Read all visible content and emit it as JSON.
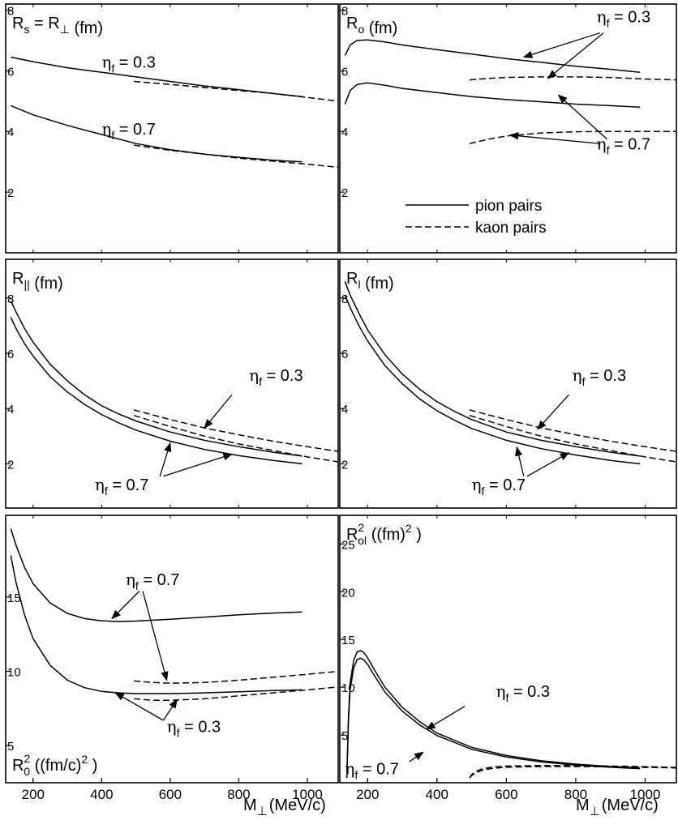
{
  "figure": {
    "xlabel_left": "M",
    "xlabel_left_sub": "⊥",
    "xlabel_left_unit": "(MeV/c)",
    "xlabel_right": "M",
    "xlabel_right_sub": "⊥",
    "xlabel_right_unit": "(MeV/c)",
    "legend": {
      "solid": "pion pairs",
      "dashed": "kaon pairs",
      "placement": "lower-left of top-right panel"
    }
  },
  "chart_data": [
    {
      "id": "rs",
      "type": "line",
      "title_main": "R",
      "title_sub": "s",
      "title_mid": " = R",
      "title_sub2": "⊥",
      "title_unit": "  (fm)",
      "xlim": [
        120,
        1090
      ],
      "ylim": [
        0,
        8.2
      ],
      "xticks": [],
      "yticks": [
        2,
        4,
        6,
        8
      ],
      "series": [
        {
          "style": "solid",
          "x": [
            135,
            200,
            300,
            400,
            500,
            600,
            700,
            800,
            900,
            985
          ],
          "y": [
            6.45,
            6.3,
            6.1,
            5.95,
            5.8,
            5.65,
            5.5,
            5.38,
            5.25,
            5.15
          ]
        },
        {
          "style": "solid",
          "x": [
            135,
            200,
            300,
            400,
            500,
            600,
            700,
            800,
            900,
            985
          ],
          "y": [
            4.85,
            4.55,
            4.2,
            3.9,
            3.6,
            3.4,
            3.25,
            3.15,
            3.05,
            3.0
          ]
        },
        {
          "style": "dashed",
          "x": [
            494,
            600,
            700,
            800,
            900,
            1000,
            1090
          ],
          "y": [
            5.65,
            5.55,
            5.45,
            5.35,
            5.25,
            5.12,
            5.0
          ]
        },
        {
          "style": "dashed",
          "x": [
            494,
            600,
            700,
            800,
            900,
            1000,
            1090
          ],
          "y": [
            3.55,
            3.38,
            3.25,
            3.12,
            3.02,
            2.92,
            2.82
          ]
        }
      ],
      "annotations": [
        {
          "greek": "η",
          "sub": "f",
          "text": " = 0.3",
          "x": 400,
          "y": 6.1
        },
        {
          "greek": "η",
          "sub": "f",
          "text": " = 0.7",
          "x": 400,
          "y": 3.9
        }
      ],
      "arrows": []
    },
    {
      "id": "ro",
      "type": "line",
      "title_main": "R",
      "title_sub": "o",
      "title_mid": "",
      "title_sub2": "",
      "title_unit": "  (fm)",
      "xlim": [
        120,
        1090
      ],
      "ylim": [
        0,
        8.2
      ],
      "xticks": [],
      "yticks": [
        2,
        4,
        6,
        8
      ],
      "series": [
        {
          "style": "solid",
          "x": [
            135,
            150,
            170,
            200,
            250,
            300,
            400,
            500,
            600,
            700,
            800,
            900,
            985
          ],
          "y": [
            6.5,
            6.85,
            7.0,
            7.02,
            6.95,
            6.85,
            6.7,
            6.55,
            6.4,
            6.28,
            6.15,
            6.05,
            5.95
          ]
        },
        {
          "style": "solid",
          "x": [
            135,
            150,
            170,
            200,
            250,
            300,
            400,
            500,
            600,
            700,
            800,
            900,
            985
          ],
          "y": [
            4.9,
            5.35,
            5.55,
            5.6,
            5.52,
            5.42,
            5.28,
            5.15,
            5.05,
            4.98,
            4.9,
            4.85,
            4.8
          ]
        },
        {
          "style": "dashed",
          "x": [
            494,
            550,
            600,
            700,
            800,
            900,
            1000,
            1090
          ],
          "y": [
            5.7,
            5.75,
            5.78,
            5.8,
            5.8,
            5.78,
            5.73,
            5.7
          ]
        },
        {
          "style": "dashed",
          "x": [
            494,
            550,
            600,
            700,
            800,
            900,
            1000,
            1090
          ],
          "y": [
            3.6,
            3.75,
            3.85,
            3.95,
            3.99,
            4.0,
            4.0,
            4.0
          ]
        }
      ],
      "annotations": [
        {
          "greek": "η",
          "sub": "f",
          "text": " = 0.3",
          "x": 860,
          "y": 7.6
        },
        {
          "greek": "η",
          "sub": "f",
          "text": " = 0.7",
          "x": 860,
          "y": 3.4
        }
      ],
      "arrows": [
        {
          "from": [
            870,
            7.25
          ],
          "to": [
            650,
            6.45
          ]
        },
        {
          "from": [
            880,
            7.25
          ],
          "to": [
            720,
            5.75
          ]
        },
        {
          "from": [
            890,
            3.75
          ],
          "to": [
            750,
            5.2
          ]
        },
        {
          "from": [
            870,
            3.6
          ],
          "to": [
            610,
            3.88
          ]
        }
      ]
    },
    {
      "id": "rpar",
      "type": "line",
      "title_main": "R",
      "title_sub": "||",
      "title_mid": "",
      "title_sub2": "",
      "title_unit": "  (fm)",
      "xlim": [
        120,
        1090
      ],
      "ylim": [
        0.4,
        9.4
      ],
      "xticks": [],
      "yticks": [
        2,
        4,
        6,
        8
      ],
      "series": [
        {
          "style": "solid",
          "x": [
            135,
            150,
            175,
            200,
            250,
            300,
            350,
            400,
            450,
            500,
            600,
            700,
            800,
            900,
            985
          ],
          "y": [
            7.9,
            7.5,
            6.9,
            6.4,
            5.6,
            5.0,
            4.5,
            4.1,
            3.8,
            3.55,
            3.15,
            2.85,
            2.62,
            2.42,
            2.28
          ]
        },
        {
          "style": "solid",
          "x": [
            135,
            150,
            175,
            200,
            250,
            300,
            350,
            400,
            450,
            500,
            600,
            700,
            800,
            900,
            985
          ],
          "y": [
            7.3,
            6.9,
            6.35,
            5.9,
            5.15,
            4.6,
            4.15,
            3.78,
            3.48,
            3.22,
            2.82,
            2.52,
            2.3,
            2.12,
            2.0
          ]
        },
        {
          "style": "dashed",
          "x": [
            494,
            600,
            700,
            800,
            900,
            1000,
            1090
          ],
          "y": [
            3.95,
            3.6,
            3.3,
            3.05,
            2.82,
            2.62,
            2.45
          ]
        },
        {
          "style": "dashed",
          "x": [
            494,
            600,
            700,
            800,
            900,
            1000,
            1090
          ],
          "y": [
            3.75,
            3.35,
            3.0,
            2.72,
            2.48,
            2.25,
            2.07
          ]
        }
      ],
      "annotations": [
        {
          "greek": "η",
          "sub": "f",
          "text": " = 0.3",
          "x": 830,
          "y": 5.0
        },
        {
          "greek": "η",
          "sub": "f",
          "text": " = 0.7",
          "x": 380,
          "y": 1.05
        }
      ],
      "arrows": [
        {
          "from": [
            780,
            4.5
          ],
          "to": [
            700,
            3.3
          ]
        },
        {
          "from": [
            570,
            1.55
          ],
          "to": [
            600,
            2.75
          ]
        },
        {
          "from": [
            580,
            1.55
          ],
          "to": [
            780,
            2.35
          ]
        }
      ]
    },
    {
      "id": "rl",
      "type": "line",
      "title_main": "R",
      "title_sub": "l",
      "title_mid": "",
      "title_sub2": "",
      "title_unit": "  (fm)",
      "xlim": [
        120,
        1090
      ],
      "ylim": [
        0.4,
        9.4
      ],
      "xticks": [],
      "yticks": [
        2,
        4,
        6,
        8
      ],
      "series": [
        {
          "style": "solid",
          "x": [
            135,
            150,
            175,
            200,
            250,
            300,
            350,
            400,
            450,
            500,
            600,
            700,
            800,
            900,
            985
          ],
          "y": [
            8.6,
            8.1,
            7.45,
            6.85,
            5.95,
            5.25,
            4.7,
            4.25,
            3.9,
            3.6,
            3.15,
            2.85,
            2.62,
            2.42,
            2.28
          ]
        },
        {
          "style": "solid",
          "x": [
            135,
            150,
            175,
            200,
            250,
            300,
            350,
            400,
            450,
            500,
            600,
            700,
            800,
            900,
            985
          ],
          "y": [
            8.1,
            7.65,
            7.0,
            6.45,
            5.55,
            4.9,
            4.35,
            3.92,
            3.58,
            3.28,
            2.85,
            2.55,
            2.32,
            2.12,
            2.0
          ]
        },
        {
          "style": "dashed",
          "x": [
            494,
            600,
            700,
            800,
            900,
            1000,
            1090
          ],
          "y": [
            3.95,
            3.6,
            3.3,
            3.05,
            2.82,
            2.62,
            2.45
          ]
        },
        {
          "style": "dashed",
          "x": [
            494,
            600,
            700,
            800,
            900,
            1000,
            1090
          ],
          "y": [
            3.75,
            3.35,
            3.0,
            2.72,
            2.48,
            2.25,
            2.07
          ]
        }
      ],
      "annotations": [
        {
          "greek": "η",
          "sub": "f",
          "text": " = 0.3",
          "x": 790,
          "y": 5.0
        },
        {
          "greek": "η",
          "sub": "f",
          "text": " = 0.7",
          "x": 500,
          "y": 1.05
        }
      ],
      "arrows": [
        {
          "from": [
            780,
            4.5
          ],
          "to": [
            690,
            3.25
          ]
        },
        {
          "from": [
            650,
            1.55
          ],
          "to": [
            630,
            2.6
          ]
        },
        {
          "from": [
            660,
            1.55
          ],
          "to": [
            780,
            2.4
          ]
        }
      ]
    },
    {
      "id": "r0sq",
      "type": "line",
      "title_main": "R",
      "title_sub": "0",
      "title_sup": "2",
      "title_mid": "",
      "title_sub2": "",
      "title_unit": "  ((fm/c)",
      "title_unit_sup": "2",
      "title_unit_end": " )",
      "xlim": [
        120,
        1090
      ],
      "ylim": [
        2.5,
        20.5
      ],
      "xticks": [
        200,
        400,
        600,
        800,
        1000
      ],
      "yticks": [
        5,
        10,
        15
      ],
      "series": [
        {
          "style": "solid",
          "x": [
            135,
            150,
            175,
            200,
            250,
            300,
            350,
            400,
            450,
            500,
            600,
            700,
            800,
            900,
            985
          ],
          "y": [
            19.6,
            18.5,
            17.0,
            15.9,
            14.6,
            13.9,
            13.55,
            13.4,
            13.35,
            13.38,
            13.5,
            13.65,
            13.8,
            13.92,
            14.0
          ]
        },
        {
          "style": "solid",
          "x": [
            135,
            150,
            175,
            200,
            250,
            300,
            350,
            400,
            450,
            500,
            600,
            700,
            800,
            900,
            985
          ],
          "y": [
            17.8,
            16.0,
            13.8,
            12.2,
            10.4,
            9.4,
            8.9,
            8.65,
            8.55,
            8.5,
            8.5,
            8.55,
            8.62,
            8.7,
            8.75
          ]
        },
        {
          "style": "dashed",
          "x": [
            494,
            550,
            600,
            700,
            800,
            900,
            1000,
            1090
          ],
          "y": [
            9.35,
            9.25,
            9.2,
            9.25,
            9.4,
            9.6,
            9.8,
            10.0
          ]
        },
        {
          "style": "dashed",
          "x": [
            494,
            550,
            600,
            700,
            800,
            900,
            1000,
            1090
          ],
          "y": [
            8.15,
            8.05,
            8.05,
            8.15,
            8.35,
            8.55,
            8.75,
            8.95
          ]
        }
      ],
      "annotations": [
        {
          "greek": "η",
          "sub": "f",
          "text": " = 0.7",
          "x": 470,
          "y": 15.8
        },
        {
          "greek": "η",
          "sub": "f",
          "text": " = 0.3",
          "x": 590,
          "y": 5.9
        }
      ],
      "arrows": [
        {
          "from": [
            510,
            15.4
          ],
          "to": [
            430,
            13.55
          ]
        },
        {
          "from": [
            520,
            15.4
          ],
          "to": [
            590,
            9.4
          ]
        },
        {
          "from": [
            580,
            6.7
          ],
          "to": [
            440,
            8.55
          ]
        },
        {
          "from": [
            580,
            6.7
          ],
          "to": [
            620,
            8.1
          ]
        }
      ]
    },
    {
      "id": "rolsq",
      "type": "line",
      "title_main": "R",
      "title_sub": "ol",
      "title_sup": "2",
      "title_mid": "",
      "title_sub2": "",
      "title_unit": "  ((fm)",
      "title_unit_sup": "2",
      "title_unit_end": " )",
      "xlim": [
        120,
        1090
      ],
      "ylim": [
        0,
        28
      ],
      "xticks": [
        200,
        400,
        600,
        800,
        1000
      ],
      "yticks": [
        5,
        10,
        15,
        20,
        25
      ],
      "series": [
        {
          "style": "solid",
          "x": [
            140,
            145,
            150,
            160,
            170,
            180,
            190,
            200,
            220,
            250,
            300,
            350,
            400,
            500,
            600,
            700,
            800,
            900,
            985
          ],
          "y": [
            0.5,
            7.0,
            10.5,
            12.8,
            13.7,
            13.85,
            13.6,
            13.1,
            11.8,
            10.0,
            7.9,
            6.4,
            5.2,
            3.7,
            2.85,
            2.3,
            1.95,
            1.7,
            1.55
          ]
        },
        {
          "style": "solid",
          "x": [
            140,
            145,
            150,
            160,
            170,
            180,
            190,
            200,
            220,
            250,
            300,
            350,
            400,
            500,
            600,
            700,
            800,
            900,
            985
          ],
          "y": [
            0.5,
            6.5,
            9.8,
            12.0,
            12.9,
            13.05,
            12.85,
            12.4,
            11.2,
            9.5,
            7.5,
            6.05,
            4.95,
            3.5,
            2.7,
            2.18,
            1.85,
            1.62,
            1.48
          ]
        },
        {
          "style": "dashed",
          "x": [
            494,
            500,
            510,
            530,
            560,
            600,
            700,
            800,
            900,
            1000,
            1090
          ],
          "y": [
            0.5,
            0.85,
            1.15,
            1.45,
            1.65,
            1.75,
            1.8,
            1.8,
            1.75,
            1.68,
            1.6
          ]
        },
        {
          "style": "dashed",
          "x": [
            494,
            500,
            510,
            530,
            560,
            600,
            700,
            800,
            900,
            1000,
            1090
          ],
          "y": [
            0.5,
            0.75,
            1.0,
            1.3,
            1.5,
            1.62,
            1.7,
            1.7,
            1.67,
            1.6,
            1.55
          ]
        }
      ],
      "annotations": [
        {
          "greek": "η",
          "sub": "f",
          "text": " = 0.3",
          "x": 570,
          "y": 9.0
        },
        {
          "greek": "η",
          "sub": "f",
          "text": " = 0.7",
          "x": 135,
          "y": 0.9
        }
      ],
      "arrows": [
        {
          "from": [
            480,
            8.0
          ],
          "to": [
            370,
            5.6
          ]
        },
        {
          "from": [
            320,
            2.2
          ],
          "to": [
            360,
            3.2
          ]
        }
      ]
    }
  ]
}
